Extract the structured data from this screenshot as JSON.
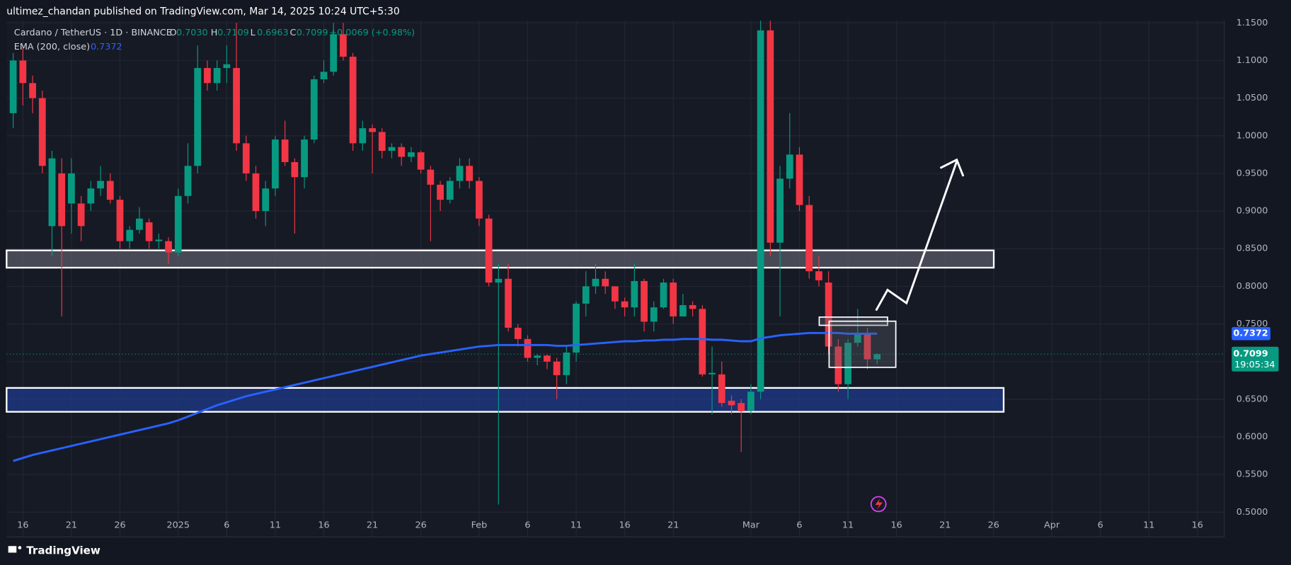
{
  "header": {
    "publisher": "ultimez_chandan published on TradingView.com, Mar 14, 2025 10:24 UTC+5:30",
    "brand": "TradingView"
  },
  "chart_data": {
    "type": "candlestick",
    "title": "Cardano / TetherUS · 1D · BINANCE",
    "legend_keys": [
      "O",
      "H",
      "L",
      "C"
    ],
    "legend_values": [
      {
        "value": 0.703,
        "label": "0.7030"
      },
      {
        "value": 0.7109,
        "label": "0.7109"
      },
      {
        "value": 0.6963,
        "label": "0.6963"
      },
      {
        "value": 0.7099,
        "label": "0.7099"
      }
    ],
    "change": "+0.0069 (+0.98%)",
    "countdown": "19:05:34",
    "up_color": "#089981",
    "down_color": "#f23645",
    "open": [
      1.03,
      1.1,
      1.07,
      1.05,
      0.88,
      0.95,
      0.91,
      0.91,
      0.91,
      0.93,
      0.94,
      0.915,
      0.86,
      0.875,
      0.885,
      0.86,
      0.86,
      0.845,
      0.92,
      0.96,
      1.09,
      1.07,
      1.09,
      1.09,
      0.99,
      0.95,
      0.9,
      0.93,
      0.995,
      0.965,
      0.945,
      0.995,
      1.075,
      1.085,
      1.135,
      1.105,
      0.99,
      1.01,
      1.005,
      0.98,
      0.985,
      0.972,
      0.978,
      0.955,
      0.935,
      0.915,
      0.94,
      0.96,
      0.94,
      0.89,
      0.805,
      0.81,
      0.745,
      0.73,
      0.705,
      0.708,
      0.7,
      0.682,
      0.712,
      0.777,
      0.8,
      0.81,
      0.8,
      0.78,
      0.772,
      0.807,
      0.753,
      0.772,
      0.805,
      0.76,
      0.775,
      0.77,
      0.683,
      0.683,
      0.648,
      0.645,
      0.635,
      0.66,
      1.14,
      0.858,
      0.943,
      0.975,
      0.908,
      0.82,
      0.805,
      0.72,
      0.67,
      0.725,
      0.738,
      0.703
    ],
    "high": [
      1.11,
      1.12,
      1.08,
      1.06,
      0.98,
      0.97,
      0.97,
      0.92,
      0.94,
      0.96,
      0.95,
      0.92,
      0.88,
      0.905,
      0.89,
      0.87,
      0.865,
      0.93,
      0.99,
      1.12,
      1.1,
      1.1,
      1.12,
      1.15,
      1.0,
      0.96,
      0.94,
      1.0,
      1.02,
      0.97,
      1.0,
      1.08,
      1.1,
      1.15,
      1.15,
      1.11,
      1.02,
      1.015,
      1.01,
      0.99,
      0.99,
      0.985,
      0.98,
      0.96,
      0.94,
      0.945,
      0.97,
      0.97,
      0.945,
      0.895,
      0.83,
      0.83,
      0.75,
      0.735,
      0.71,
      0.71,
      0.705,
      0.72,
      0.78,
      0.82,
      0.83,
      0.82,
      0.8,
      0.785,
      0.83,
      0.81,
      0.78,
      0.81,
      0.81,
      0.79,
      0.78,
      0.775,
      0.72,
      0.7,
      0.655,
      0.65,
      0.67,
      1.16,
      1.16,
      0.96,
      1.03,
      0.985,
      0.92,
      0.84,
      0.82,
      0.73,
      0.73,
      0.77,
      0.745,
      0.7109
    ],
    "low": [
      1.01,
      1.04,
      1.03,
      0.95,
      0.84,
      0.76,
      0.87,
      0.86,
      0.9,
      0.92,
      0.91,
      0.85,
      0.85,
      0.87,
      0.85,
      0.85,
      0.83,
      0.84,
      0.91,
      0.95,
      1.06,
      1.06,
      1.07,
      0.98,
      0.94,
      0.89,
      0.88,
      0.92,
      0.96,
      0.87,
      0.93,
      0.99,
      1.07,
      1.08,
      1.1,
      0.98,
      0.98,
      0.95,
      0.97,
      0.97,
      0.96,
      0.965,
      0.95,
      0.86,
      0.9,
      0.91,
      0.93,
      0.93,
      0.88,
      0.8,
      0.51,
      0.74,
      0.72,
      0.7,
      0.695,
      0.69,
      0.65,
      0.67,
      0.7,
      0.76,
      0.79,
      0.79,
      0.77,
      0.76,
      0.76,
      0.74,
      0.74,
      0.77,
      0.75,
      0.76,
      0.76,
      0.68,
      0.63,
      0.64,
      0.63,
      0.58,
      0.63,
      0.65,
      0.84,
      0.76,
      0.93,
      0.9,
      0.81,
      0.8,
      0.71,
      0.66,
      0.65,
      0.72,
      0.69,
      0.6963
    ],
    "close": [
      1.1,
      1.07,
      1.05,
      0.96,
      0.97,
      0.88,
      0.95,
      0.88,
      0.93,
      0.94,
      0.915,
      0.86,
      0.875,
      0.89,
      0.86,
      0.862,
      0.845,
      0.92,
      0.96,
      1.09,
      1.07,
      1.09,
      1.095,
      0.99,
      0.95,
      0.9,
      0.93,
      0.995,
      0.965,
      0.945,
      0.995,
      1.075,
      1.085,
      1.135,
      1.105,
      0.99,
      1.01,
      1.005,
      0.98,
      0.985,
      0.972,
      0.978,
      0.955,
      0.935,
      0.915,
      0.94,
      0.96,
      0.94,
      0.89,
      0.805,
      0.81,
      0.745,
      0.73,
      0.705,
      0.708,
      0.7,
      0.682,
      0.712,
      0.777,
      0.8,
      0.81,
      0.8,
      0.78,
      0.772,
      0.807,
      0.753,
      0.772,
      0.805,
      0.76,
      0.775,
      0.77,
      0.683,
      0.685,
      0.645,
      0.642,
      0.634,
      0.66,
      1.14,
      0.858,
      0.943,
      0.975,
      0.908,
      0.82,
      0.808,
      0.72,
      0.67,
      0.725,
      0.738,
      0.703,
      0.7099
    ],
    "ema": {
      "name": "EMA (200, close)",
      "color": "#2962ff",
      "values": [
        0.568,
        0.572,
        0.576,
        0.579,
        0.582,
        0.585,
        0.588,
        0.591,
        0.594,
        0.597,
        0.6,
        0.603,
        0.606,
        0.609,
        0.612,
        0.615,
        0.618,
        0.622,
        0.627,
        0.632,
        0.637,
        0.642,
        0.646,
        0.65,
        0.654,
        0.657,
        0.66,
        0.663,
        0.666,
        0.669,
        0.672,
        0.675,
        0.678,
        0.681,
        0.684,
        0.687,
        0.69,
        0.693,
        0.696,
        0.699,
        0.702,
        0.705,
        0.708,
        0.71,
        0.712,
        0.714,
        0.716,
        0.718,
        0.72,
        0.721,
        0.722,
        0.722,
        0.722,
        0.722,
        0.722,
        0.722,
        0.721,
        0.721,
        0.722,
        0.723,
        0.724,
        0.725,
        0.726,
        0.727,
        0.727,
        0.728,
        0.728,
        0.729,
        0.729,
        0.73,
        0.73,
        0.73,
        0.729,
        0.729,
        0.728,
        0.727,
        0.727,
        0.731,
        0.733,
        0.735,
        0.736,
        0.737,
        0.738,
        0.738,
        0.738,
        0.738,
        0.737,
        0.737,
        0.737,
        0.7372
      ]
    },
    "xlim": [
      -0.68,
      124.77
    ],
    "xticks": [
      {
        "value": 1,
        "label": "16"
      },
      {
        "value": 6,
        "label": "21"
      },
      {
        "value": 11,
        "label": "26"
      },
      {
        "value": 17,
        "label": "2025"
      },
      {
        "value": 22,
        "label": "6"
      },
      {
        "value": 27,
        "label": "11"
      },
      {
        "value": 32,
        "label": "16"
      },
      {
        "value": 37,
        "label": "21"
      },
      {
        "value": 42,
        "label": "26"
      },
      {
        "value": 48,
        "label": "Feb"
      },
      {
        "value": 53,
        "label": "6"
      },
      {
        "value": 58,
        "label": "11"
      },
      {
        "value": 63,
        "label": "16"
      },
      {
        "value": 68,
        "label": "21"
      },
      {
        "value": 76,
        "label": "Mar"
      },
      {
        "value": 81,
        "label": "6"
      },
      {
        "value": 86,
        "label": "11"
      },
      {
        "value": 91,
        "label": "16"
      },
      {
        "value": 96,
        "label": "21"
      },
      {
        "value": 101,
        "label": "26"
      },
      {
        "value": 107,
        "label": "Apr"
      },
      {
        "value": 112,
        "label": "6"
      },
      {
        "value": 117,
        "label": "11"
      },
      {
        "value": 122,
        "label": "16"
      }
    ],
    "ylim": [
      0.467,
      1.153
    ],
    "yticks": [
      {
        "value": 0.5,
        "label": "0.5000"
      },
      {
        "value": 0.55,
        "label": "0.5500"
      },
      {
        "value": 0.6,
        "label": "0.6000"
      },
      {
        "value": 0.65,
        "label": "0.6500"
      },
      {
        "value": 0.7,
        "label": "0.7000"
      },
      {
        "value": 0.75,
        "label": "0.7500"
      },
      {
        "value": 0.8,
        "label": "0.8000"
      },
      {
        "value": 0.85,
        "label": "0.8500"
      },
      {
        "value": 0.9,
        "label": "0.9000"
      },
      {
        "value": 0.95,
        "label": "0.9500"
      },
      {
        "value": 1.0,
        "label": "1.0000"
      },
      {
        "value": 1.05,
        "label": "1.0500"
      },
      {
        "value": 1.1,
        "label": "1.1000"
      },
      {
        "value": 1.15,
        "label": "1.1500"
      }
    ],
    "grid": true
  }
}
